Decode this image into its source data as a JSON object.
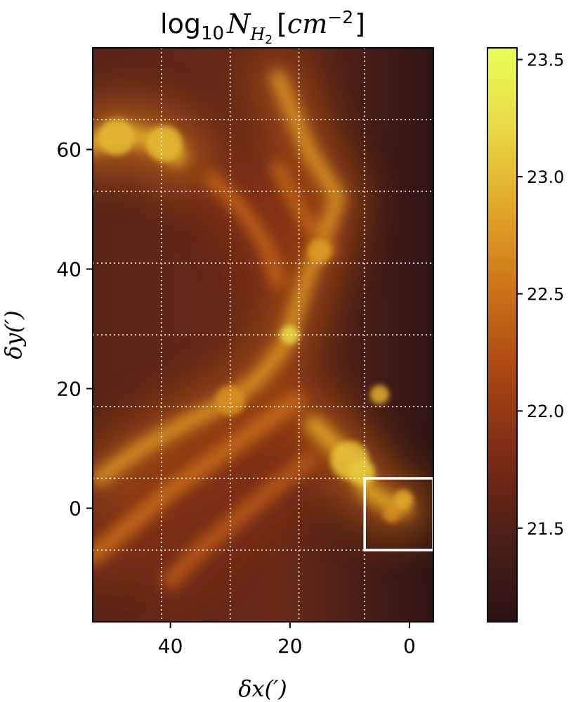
{
  "chart_data": {
    "type": "heatmap",
    "title": "log10 N_H2 [cm^-2]",
    "title_parts": {
      "log": "log",
      "base": "10",
      "symbol": "N",
      "subscript": "H",
      "subsubscript": "2",
      "unit_open": "[",
      "unit": "cm",
      "exponent": "−2",
      "unit_close": "]"
    },
    "xlabel": "δx(′)",
    "ylabel": "δy(′)",
    "xlim": [
      53,
      -4
    ],
    "ylim": [
      -19,
      77
    ],
    "x_ticks": [
      {
        "value": 40,
        "label": "40"
      },
      {
        "value": 20,
        "label": "20"
      },
      {
        "value": 0,
        "label": "0"
      }
    ],
    "y_ticks": [
      {
        "value": 60,
        "label": "60"
      },
      {
        "value": 40,
        "label": "40"
      },
      {
        "value": 20,
        "label": "20"
      },
      {
        "value": 0,
        "label": "0"
      }
    ],
    "grid_x": [
      41.5,
      30,
      18.5,
      7.5
    ],
    "grid_y": [
      65,
      53,
      41,
      29,
      17,
      5,
      -7
    ],
    "grid": true,
    "grid_style": "dotted white",
    "box_region": {
      "x": [
        -4,
        7.5
      ],
      "y": [
        -7,
        5
      ],
      "color": "#ffffff"
    },
    "colorbar": {
      "range": [
        21.1,
        23.55
      ],
      "ticks": [
        {
          "value": 23.5,
          "label": "23.5"
        },
        {
          "value": 23.0,
          "label": "23.0"
        },
        {
          "value": 22.5,
          "label": "22.5"
        },
        {
          "value": 22.0,
          "label": "22.0"
        },
        {
          "value": 21.5,
          "label": "21.5"
        }
      ],
      "colormap": [
        "#2a1212",
        "#4b1e18",
        "#7a2a14",
        "#a84412",
        "#cc7018",
        "#e0a426",
        "#e8d845",
        "#e8ff58"
      ]
    },
    "filaments": [
      {
        "name": "main-filament",
        "points": [
          [
            52,
            5
          ],
          [
            45,
            10
          ],
          [
            38,
            14
          ],
          [
            30,
            18
          ],
          [
            25,
            22
          ],
          [
            21,
            27
          ],
          [
            20,
            30
          ],
          [
            19,
            33
          ],
          [
            17,
            39
          ],
          [
            14,
            46
          ],
          [
            12,
            52
          ],
          [
            17,
            60
          ],
          [
            22,
            72
          ]
        ],
        "level": 22.75,
        "width": 2.5
      },
      {
        "name": "upper-left-clump",
        "points": [
          [
            53,
            61
          ],
          [
            49,
            63
          ],
          [
            45,
            62
          ],
          [
            41,
            61
          ],
          [
            39,
            59
          ]
        ],
        "level": 22.9,
        "width": 3.5
      },
      {
        "name": "lower-right-ridge",
        "points": [
          [
            16,
            14
          ],
          [
            12,
            10
          ],
          [
            9,
            7
          ],
          [
            7,
            3
          ],
          [
            4,
            1
          ],
          [
            1,
            0
          ]
        ],
        "level": 22.85,
        "width": 3
      },
      {
        "name": "lower-left-diagonal",
        "points": [
          [
            53,
            -8
          ],
          [
            47,
            -3
          ],
          [
            40,
            3
          ],
          [
            33,
            8
          ],
          [
            26,
            13
          ],
          [
            19,
            18
          ]
        ],
        "level": 22.45,
        "width": 3
      },
      {
        "name": "middle-wisp",
        "points": [
          [
            33,
            55
          ],
          [
            28,
            50
          ],
          [
            24,
            44
          ],
          [
            22,
            38
          ]
        ],
        "level": 22.4,
        "width": 2.5
      },
      {
        "name": "upper-wisp",
        "points": [
          [
            22,
            57
          ],
          [
            18,
            49
          ],
          [
            13,
            43
          ]
        ],
        "level": 22.45,
        "width": 2
      },
      {
        "name": "lower-filler",
        "points": [
          [
            40,
            -12
          ],
          [
            34,
            -6
          ],
          [
            28,
            -1
          ],
          [
            22,
            4
          ],
          [
            17,
            8
          ]
        ],
        "level": 22.3,
        "width": 3
      }
    ],
    "clumps": [
      {
        "x": 20,
        "y": 29,
        "r": 1.6,
        "level": 23.2
      },
      {
        "x": 10,
        "y": 8,
        "r": 3.2,
        "level": 23.05
      },
      {
        "x": 8,
        "y": 6,
        "r": 2.2,
        "level": 23.1
      },
      {
        "x": 5,
        "y": 19,
        "r": 1.6,
        "level": 22.95
      },
      {
        "x": 1,
        "y": 1.5,
        "r": 1.6,
        "level": 22.9
      },
      {
        "x": 3,
        "y": -1,
        "r": 1.4,
        "level": 22.7
      },
      {
        "x": 41,
        "y": 61,
        "r": 3,
        "level": 23.0
      },
      {
        "x": 49,
        "y": 62,
        "r": 3,
        "level": 23.0
      },
      {
        "x": 15,
        "y": 43,
        "r": 2,
        "level": 22.8
      },
      {
        "x": 30,
        "y": 18,
        "r": 2.5,
        "level": 22.7
      }
    ]
  }
}
